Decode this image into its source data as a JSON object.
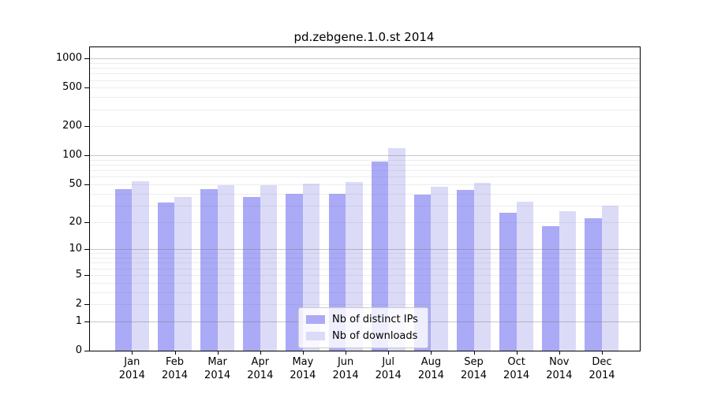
{
  "title": "pd.zebgene.1.0.st 2014",
  "chart_data": {
    "type": "bar",
    "title": "pd.zebgene.1.0.st 2014",
    "categories": [
      "Jan",
      "Feb",
      "Mar",
      "Apr",
      "May",
      "Jun",
      "Jul",
      "Aug",
      "Sep",
      "Oct",
      "Nov",
      "Dec"
    ],
    "x_year_label": "2014",
    "series": [
      {
        "name": "Nb of distinct IPs",
        "color": "#aaaaf7",
        "values": [
          45,
          32,
          45,
          37,
          40,
          40,
          86,
          39,
          44,
          25,
          18,
          22
        ]
      },
      {
        "name": "Nb of downloads",
        "color": "#dbdbf8",
        "values": [
          54,
          37,
          49,
          49,
          51,
          53,
          120,
          47,
          52,
          33,
          26,
          30
        ]
      }
    ],
    "y_ticks": [
      0,
      1,
      2,
      5,
      10,
      20,
      50,
      100,
      200,
      500,
      1000
    ],
    "y_scale": "log1p",
    "ylim": [
      0,
      1305
    ],
    "grid": true,
    "major_gridline_values": [
      1,
      10,
      100,
      1000
    ],
    "legend_position": "inside-bottom-center",
    "colors": {
      "bar_distinct_ips": "#aaaaf7",
      "bar_downloads": "#dbdbf8",
      "gridline": "#737373",
      "axis": "#000000",
      "background": "#ffffff"
    }
  }
}
